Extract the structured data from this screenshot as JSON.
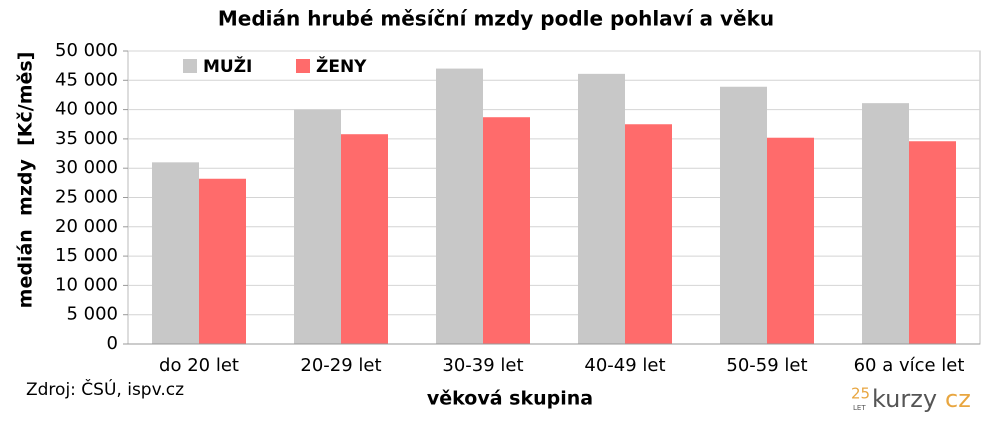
{
  "chart_data": {
    "type": "bar",
    "title": "Medián hrubé měsíční mzdy podle pohlaví a věku",
    "x_label": "věková skupina",
    "y_label": "medián  mzdy  [Kč/měs]",
    "categories": [
      "do 20 let",
      "20-29 let",
      "30-39 let",
      "40-49 let",
      "50-59 let",
      "60 a více let"
    ],
    "series": [
      {
        "name": "MUŽI",
        "color": "#c8c8c8",
        "values": [
          31000,
          40000,
          47000,
          46100,
          43900,
          41100
        ]
      },
      {
        "name": "ŽENY",
        "color": "#ff6b6b",
        "values": [
          28200,
          35800,
          38700,
          37500,
          35200,
          34600
        ]
      }
    ],
    "ylim": [
      0,
      50000
    ],
    "yticks": [
      0,
      {
        "value": 5000,
        "label": "5 000"
      },
      {
        "value": 10000,
        "label": "10 000"
      },
      {
        "value": 15000,
        "label": "15 000"
      },
      {
        "value": 20000,
        "label": "20 000"
      },
      {
        "value": 25000,
        "label": "25 000"
      },
      {
        "value": 30000,
        "label": "30 000"
      },
      {
        "value": 35000,
        "label": "35 000"
      },
      {
        "value": 40000,
        "label": "40 000"
      },
      {
        "value": 45000,
        "label": "45 000"
      },
      {
        "value": 50000,
        "label": "50 000"
      }
    ],
    "grid": true,
    "legend": "top-left",
    "source": "Zdroj: ČSÚ, ispv.cz"
  },
  "logo": {
    "years": "25",
    "years_label": "LET",
    "name": "kurzy",
    "suffix": "cz"
  }
}
